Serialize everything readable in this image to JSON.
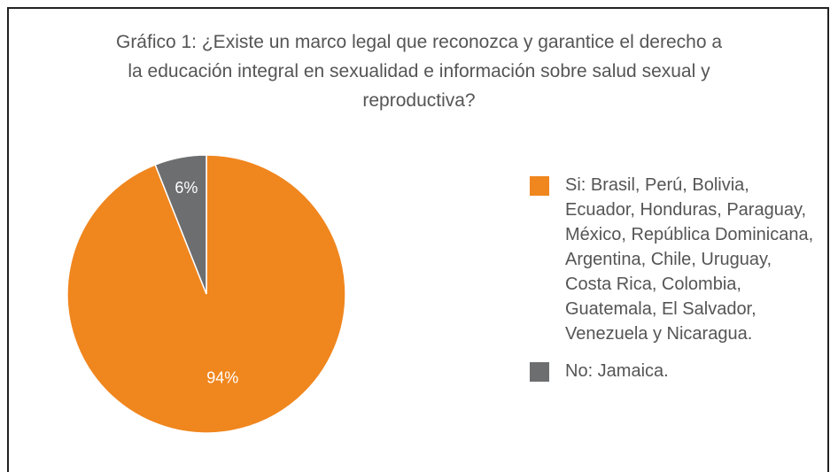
{
  "chart_data": {
    "type": "pie",
    "title": "Gráfico 1: ¿Existe un marco legal que reconozca y garantice el derecho a la educación integral en sexualidad e información sobre salud sexual y reproductiva?",
    "categories": [
      "Si: Brasil, Perú, Bolivia, Ecuador, Honduras, Paraguay, México, República Dominicana, Argentina, Chile, Uruguay, Costa Rica, Colombia, Guatemala, El Salvador, Venezuela y Nicaragua.",
      "No: Jamaica."
    ],
    "values": [
      94,
      6
    ],
    "value_labels": [
      "94%",
      "6%"
    ],
    "colors": [
      "#f0861e",
      "#6d6e70"
    ]
  }
}
